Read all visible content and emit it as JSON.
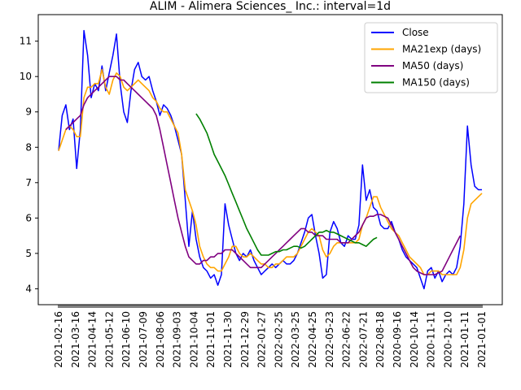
{
  "chart_data": {
    "type": "line",
    "title": "ALIM - Alimera Sciences_ Inc.: interval=1d",
    "xlabel": "",
    "ylabel": "",
    "ylim": [
      3.55,
      11.75
    ],
    "y_ticks": [
      4,
      5,
      6,
      7,
      8,
      9,
      10,
      11
    ],
    "x_tick_labels": [
      "2021-02-16",
      "2021-03-16",
      "2021-04-14",
      "2021-05-12",
      "2021-06-10",
      "2021-07-09",
      "2021-08-06",
      "2021-09-03",
      "2021-10-04",
      "2021-11-01",
      "2021-11-30",
      "2021-12-29",
      "2022-01-27",
      "2022-02-25",
      "2022-03-25",
      "2022-04-25",
      "2022-05-23",
      "2022-06-22",
      "2022-07-21",
      "2022-08-18",
      "2020-09-16",
      "2020-10-14",
      "2020-11-11",
      "2020-12-10",
      "2021-01-11",
      "2021-01-01"
    ],
    "legend": {
      "position": "top-right"
    },
    "series": [
      {
        "name": "Close",
        "color": "#0000ff",
        "values": [
          7.9,
          8.9,
          9.2,
          8.5,
          8.8,
          7.4,
          8.5,
          11.3,
          10.6,
          9.4,
          9.8,
          9.6,
          10.3,
          9.6,
          10.1,
          10.6,
          11.2,
          9.8,
          9.0,
          8.7,
          9.6,
          10.2,
          10.4,
          10.0,
          9.9,
          10.0,
          9.6,
          9.3,
          8.9,
          9.2,
          9.1,
          8.9,
          8.6,
          8.2,
          7.8,
          6.5,
          5.2,
          6.2,
          5.4,
          4.9,
          4.6,
          4.5,
          4.3,
          4.4,
          4.1,
          4.4,
          6.4,
          5.8,
          5.4,
          5.0,
          4.8,
          5.0,
          4.9,
          5.1,
          4.8,
          4.6,
          4.4,
          4.5,
          4.6,
          4.7,
          4.6,
          4.7,
          4.8,
          4.7,
          4.7,
          4.8,
          5.0,
          5.3,
          5.6,
          6.0,
          6.1,
          5.5,
          5.0,
          4.3,
          4.4,
          5.6,
          5.9,
          5.7,
          5.3,
          5.2,
          5.5,
          5.4,
          5.4,
          5.8,
          7.5,
          6.5,
          6.8,
          6.3,
          6.2,
          5.8,
          5.7,
          5.7,
          5.9,
          5.6,
          5.4,
          5.1,
          4.9,
          4.8,
          4.7,
          4.6,
          4.3,
          4.0,
          4.5,
          4.6,
          4.3,
          4.5,
          4.2,
          4.4,
          4.5,
          4.4,
          4.6,
          5.2,
          6.4,
          8.6,
          7.5,
          6.9,
          6.8,
          6.8
        ],
        "ma": false
      },
      {
        "name": "MA21exp (days)",
        "color": "#ffa500",
        "values": [
          7.9,
          8.2,
          8.5,
          8.6,
          8.5,
          8.3,
          8.3,
          9.4,
          9.7,
          9.7,
          9.8,
          9.8,
          10.2,
          9.7,
          9.5,
          9.9,
          10.1,
          10.0,
          9.7,
          9.6,
          9.7,
          9.8,
          9.9,
          9.8,
          9.7,
          9.6,
          9.4,
          9.3,
          9.1,
          9.0,
          9.0,
          8.8,
          8.6,
          8.4,
          7.8,
          6.8,
          6.5,
          6.2,
          5.8,
          5.2,
          4.9,
          4.7,
          4.6,
          4.6,
          4.5,
          4.5,
          4.7,
          4.9,
          5.2,
          5.2,
          5.0,
          4.9,
          4.9,
          5.0,
          4.9,
          4.8,
          4.7,
          4.7,
          4.6,
          4.6,
          4.7,
          4.7,
          4.8,
          4.9,
          4.9,
          4.9,
          5.0,
          5.2,
          5.4,
          5.6,
          5.7,
          5.6,
          5.5,
          5.1,
          4.9,
          5.0,
          5.2,
          5.3,
          5.3,
          5.3,
          5.3,
          5.3,
          5.3,
          5.4,
          5.8,
          6.0,
          6.3,
          6.6,
          6.6,
          6.3,
          6.1,
          5.9,
          5.7,
          5.6,
          5.5,
          5.3,
          5.1,
          4.9,
          4.8,
          4.7,
          4.6,
          4.4,
          4.4,
          4.5,
          4.5,
          4.5,
          4.4,
          4.4,
          4.4,
          4.4,
          4.4,
          4.6,
          5.1,
          6.0,
          6.4,
          6.5,
          6.6,
          6.7
        ],
        "ma": true
      },
      {
        "name": "MA50 (days)",
        "color": "#800080",
        "values": [
          null,
          null,
          8.5,
          8.6,
          8.7,
          8.8,
          8.9,
          9.2,
          9.4,
          9.5,
          9.6,
          9.7,
          9.8,
          9.9,
          10.0,
          10.0,
          10.0,
          9.9,
          9.9,
          9.8,
          9.7,
          9.6,
          9.5,
          9.4,
          9.3,
          9.2,
          9.1,
          8.9,
          8.5,
          8.0,
          7.5,
          7.0,
          6.5,
          6.0,
          5.6,
          5.2,
          4.9,
          4.8,
          4.7,
          4.7,
          4.8,
          4.8,
          4.9,
          4.9,
          5.0,
          5.0,
          5.1,
          5.1,
          5.1,
          5.0,
          4.9,
          4.8,
          4.7,
          4.6,
          4.6,
          4.6,
          4.6,
          4.7,
          4.8,
          4.9,
          5.0,
          5.1,
          5.2,
          5.3,
          5.4,
          5.5,
          5.6,
          5.7,
          5.7,
          5.6,
          5.6,
          5.5,
          5.5,
          5.5,
          5.4,
          5.4,
          5.4,
          5.4,
          5.3,
          5.3,
          5.3,
          5.4,
          5.5,
          5.6,
          5.8,
          6.0,
          6.05,
          6.05,
          6.1,
          6.1,
          6.05,
          6.0,
          5.8,
          5.6,
          5.4,
          5.2,
          5.0,
          4.8,
          4.6,
          4.5,
          4.45,
          4.4,
          4.4,
          4.4,
          4.4,
          4.45,
          4.5,
          4.7,
          4.9,
          5.1,
          5.3,
          5.5
        ],
        "ma": true
      },
      {
        "name": "MA150 (days)",
        "color": "#008000",
        "values": [
          8.95,
          8.8,
          8.6,
          8.4,
          8.1,
          7.8,
          7.6,
          7.4,
          7.2,
          6.95,
          6.7,
          6.45,
          6.2,
          5.95,
          5.7,
          5.5,
          5.3,
          5.1,
          4.95,
          4.95,
          4.95,
          5.0,
          5.05,
          5.05,
          5.1,
          5.1,
          5.15,
          5.2,
          5.2,
          5.15,
          5.2,
          5.3,
          5.4,
          5.5,
          5.6,
          5.6,
          5.65,
          5.6,
          5.6,
          5.55,
          5.5,
          5.45,
          5.4,
          5.35,
          5.3,
          5.3,
          5.25,
          5.2,
          5.3,
          5.4,
          5.45
        ],
        "ma": true,
        "start_index": 38
      }
    ]
  }
}
